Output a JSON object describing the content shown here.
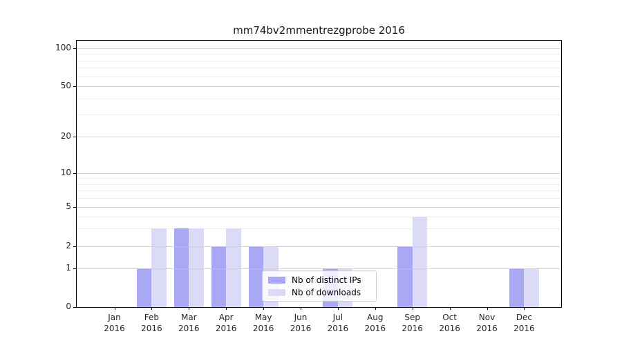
{
  "chart_data": {
    "type": "bar",
    "title": "mm74bv2mmentrezgprobe 2016",
    "categories": [
      "Jan 2016",
      "Feb 2016",
      "Mar 2016",
      "Apr 2016",
      "May 2016",
      "Jun 2016",
      "Jul 2016",
      "Aug 2016",
      "Sep 2016",
      "Oct 2016",
      "Nov 2016",
      "Dec 2016"
    ],
    "series": [
      {
        "name": "Nb of distinct IPs",
        "color": "#a8a8f5",
        "values": [
          0,
          1,
          3,
          2,
          2,
          0,
          1,
          0,
          2,
          0,
          0,
          1
        ]
      },
      {
        "name": "Nb of downloads",
        "color": "#dbdbf8",
        "values": [
          0,
          3,
          3,
          3,
          2,
          0,
          1,
          0,
          4,
          0,
          0,
          1
        ]
      }
    ],
    "y_axis": {
      "scale": "symlog",
      "major_ticks": [
        0,
        1,
        2,
        5,
        10,
        20,
        50,
        100
      ],
      "minor_ticks": [
        3,
        4,
        6,
        7,
        8,
        9,
        30,
        40,
        60,
        70,
        80,
        90
      ],
      "ylim": [
        0,
        115
      ]
    },
    "xlabel": "",
    "ylabel": "",
    "grid": "on",
    "legend": {
      "position": "lower center",
      "entries": [
        "Nb of distinct IPs",
        "Nb of downloads"
      ]
    }
  },
  "colors": {
    "bar_distinct_ips": "#a8a8f5",
    "bar_downloads": "#dbdbf8",
    "grid_major": "#c8c8c8",
    "grid_minor": "#ededed",
    "spine": "#000000",
    "tick_text": "#262626",
    "legend_border": "#cccccc",
    "legend_bg": "rgba(255,255,255,0.8)"
  }
}
